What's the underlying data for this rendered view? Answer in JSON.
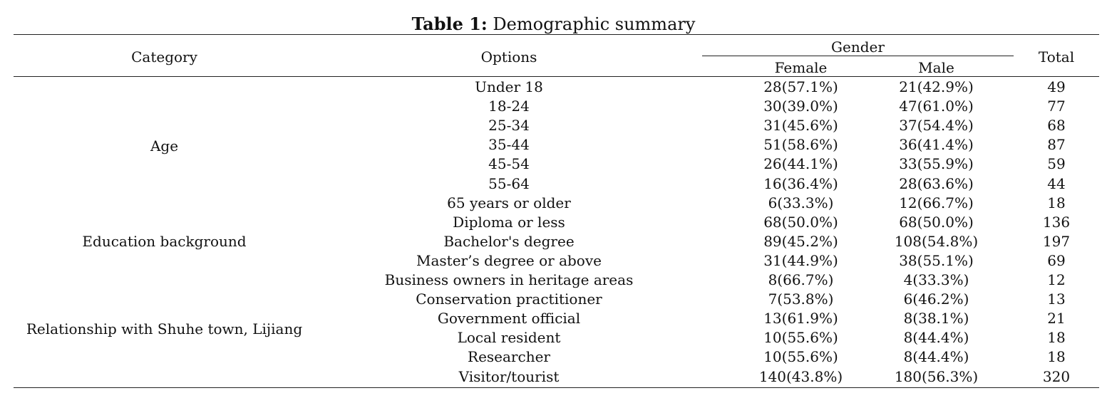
{
  "caption": {
    "label": "Table 1:",
    "text": " Demographic summary"
  },
  "header": {
    "category": "Category",
    "options": "Options",
    "gender": "Gender",
    "female": "Female",
    "male": "Male",
    "total": "Total"
  },
  "categories": [
    "Age",
    "Education background",
    "Relationship with Shuhe town, Lijiang"
  ],
  "rows": [
    {
      "option": "Under 18",
      "female": "28(57.1%)",
      "male": "21(42.9%)",
      "total": "49"
    },
    {
      "option": "18-24",
      "female": "30(39.0%)",
      "male": "47(61.0%)",
      "total": "77"
    },
    {
      "option": "25-34",
      "female": "31(45.6%)",
      "male": "37(54.4%)",
      "total": "68"
    },
    {
      "option": "35-44",
      "female": "51(58.6%)",
      "male": "36(41.4%)",
      "total": "87"
    },
    {
      "option": "45-54",
      "female": "26(44.1%)",
      "male": "33(55.9%)",
      "total": "59"
    },
    {
      "option": "55-64",
      "female": "16(36.4%)",
      "male": "28(63.6%)",
      "total": "44"
    },
    {
      "option": "65 years or older",
      "female": "6(33.3%)",
      "male": "12(66.7%)",
      "total": "18"
    },
    {
      "option": "Diploma or less",
      "female": "68(50.0%)",
      "male": "68(50.0%)",
      "total": "136"
    },
    {
      "option": "Bachelor's degree",
      "female": "89(45.2%)",
      "male": "108(54.8%)",
      "total": "197"
    },
    {
      "option": "Master’s degree or above",
      "female": "31(44.9%)",
      "male": "38(55.1%)",
      "total": "69"
    },
    {
      "option": "Business owners in heritage areas",
      "female": "8(66.7%)",
      "male": "4(33.3%)",
      "total": "12"
    },
    {
      "option": "Conservation practitioner",
      "female": "7(53.8%)",
      "male": "6(46.2%)",
      "total": "13"
    },
    {
      "option": "Government official",
      "female": "13(61.9%)",
      "male": "8(38.1%)",
      "total": "21"
    },
    {
      "option": "Local resident",
      "female": "10(55.6%)",
      "male": "8(44.4%)",
      "total": "18"
    },
    {
      "option": "Researcher",
      "female": "10(55.6%)",
      "male": "8(44.4%)",
      "total": "18"
    },
    {
      "option": "Visitor/tourist",
      "female": "140(43.8%)",
      "male": "180(56.3%)",
      "total": "320"
    }
  ]
}
